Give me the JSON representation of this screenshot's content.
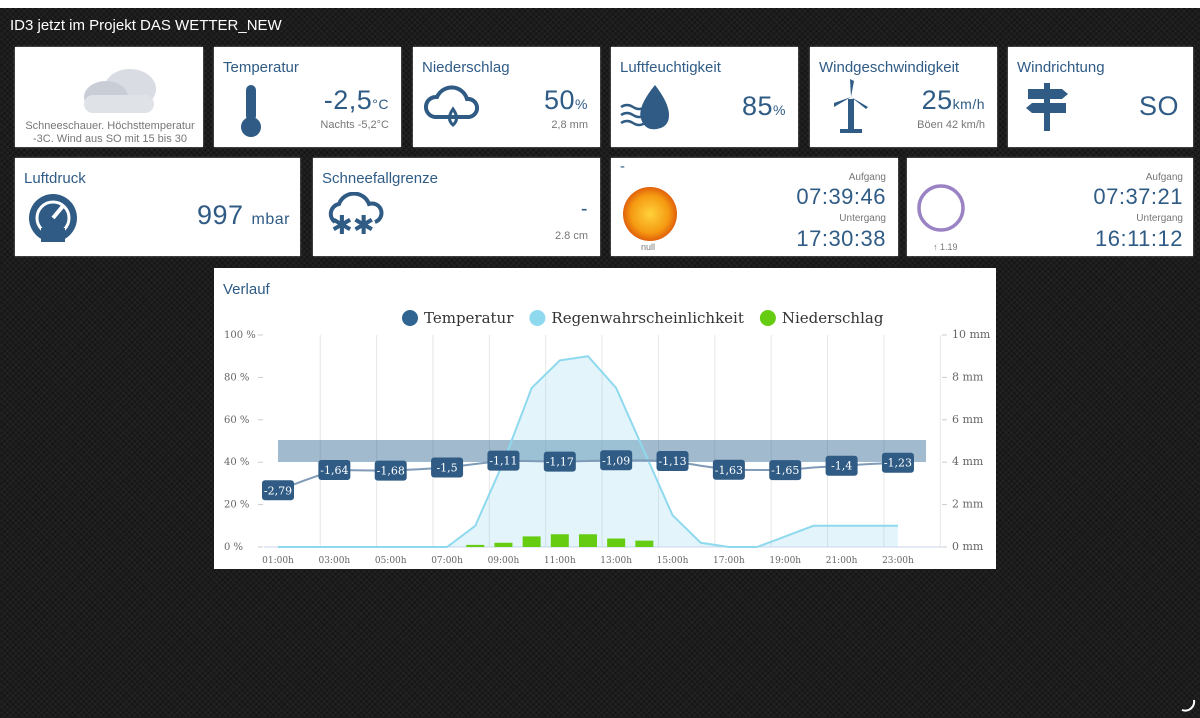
{
  "header": {
    "title": "ID3 jetzt im Projekt DAS WETTER_NEW"
  },
  "weather": {
    "text": "Schneeschauer. Höchsttemperatur -3C. Wind aus SO mit 15 bis 30"
  },
  "temperature": {
    "title": "Temperatur",
    "value": "-2,5",
    "unit": "°C",
    "sub": "Nachts -5,2°C"
  },
  "precipitation": {
    "title": "Niederschlag",
    "value": "50",
    "unit": "%",
    "sub": "2,8 mm"
  },
  "humidity": {
    "title": "Luftfeuchtigkeit",
    "value": "85",
    "unit": "%"
  },
  "wind_speed": {
    "title": "Windgeschwindigkeit",
    "value": "25",
    "unit": "km/h",
    "sub": "Böen 42 km/h"
  },
  "wind_direction": {
    "title": "Windrichtung",
    "value": "SO"
  },
  "pressure": {
    "title": "Luftdruck",
    "value": "997",
    "unit": "mbar"
  },
  "snow_line": {
    "title": "Schneefallgrenze",
    "value": "-",
    "sub": "2.8 cm"
  },
  "sun": {
    "title": "-",
    "label": "null",
    "rise_label": "Aufgang",
    "rise": "07:39:46",
    "set_label": "Untergang",
    "set": "17:30:38"
  },
  "moon": {
    "label": "1.19",
    "rise_label": "Aufgang",
    "rise": "07:37:21",
    "set_label": "Untergang",
    "set": "16:11:12"
  },
  "chart_data": {
    "type": "combo",
    "title": "Verlauf",
    "categories": [
      "01:00h",
      null,
      "03:00h",
      null,
      "05:00h",
      null,
      "07:00h",
      null,
      "09:00h",
      null,
      "11:00h",
      null,
      "13:00h",
      null,
      "15:00h",
      null,
      "17:00h",
      null,
      "19:00h",
      null,
      "21:00h",
      null,
      "23:00h"
    ],
    "series": [
      {
        "name": "Temperatur",
        "color": "#2f6590",
        "type": "line",
        "axis": "y3",
        "values": [
          -2.79,
          -2.2,
          -1.64,
          -1.66,
          -1.68,
          -1.6,
          -1.5,
          -1.3,
          -1.11,
          -1.14,
          -1.17,
          -1.13,
          -1.09,
          -1.1,
          -1.13,
          -1.4,
          -1.63,
          -1.64,
          -1.65,
          -1.5,
          -1.4,
          -1.3,
          -1.23
        ],
        "value_labels": [
          "-2,79",
          null,
          "-1,64",
          null,
          "-1,68",
          null,
          "-1,5",
          null,
          "-1,11",
          null,
          "-1,17",
          null,
          "-1,09",
          null,
          "-1,13",
          null,
          "-1,63",
          null,
          "-1,65",
          null,
          "-1,4",
          null,
          "-1,23"
        ]
      },
      {
        "name": "Regenwahrscheinlichkeit",
        "color": "#8fd9ef",
        "type": "area",
        "values": [
          0,
          0,
          0,
          0,
          0,
          0,
          0,
          10,
          40,
          75,
          88,
          90,
          75,
          45,
          15,
          2,
          0,
          0,
          5,
          10,
          10,
          10,
          10
        ]
      },
      {
        "name": "Niederschlag",
        "color": "#66cc11",
        "type": "bar",
        "axis": "y2",
        "values": [
          0,
          0,
          0,
          0,
          0,
          0,
          0,
          0.1,
          0.2,
          0.5,
          0.6,
          0.6,
          0.4,
          0.3,
          0,
          0,
          0,
          0,
          0,
          0,
          0,
          0,
          0
        ]
      }
    ],
    "ylim": [
      0,
      100
    ],
    "yticks": [
      {
        "value": 0,
        "label": "0 %"
      },
      {
        "value": 20,
        "label": "20 %"
      },
      {
        "value": 40,
        "label": "40 %"
      },
      {
        "value": 60,
        "label": "60 %"
      },
      {
        "value": 80,
        "label": "80 %"
      },
      {
        "value": 100,
        "label": "100 %"
      }
    ],
    "y2lim": [
      0,
      10
    ],
    "y2ticks": [
      {
        "value": 0,
        "label": "0 mm"
      },
      {
        "value": 2,
        "label": "2 mm"
      },
      {
        "value": 4,
        "label": "4 mm"
      },
      {
        "value": 6,
        "label": "6 mm"
      },
      {
        "value": 8,
        "label": "8 mm"
      },
      {
        "value": 10,
        "label": "10 mm"
      }
    ],
    "y3lim": [
      -6,
      6
    ],
    "grid": true,
    "legend": "top"
  }
}
